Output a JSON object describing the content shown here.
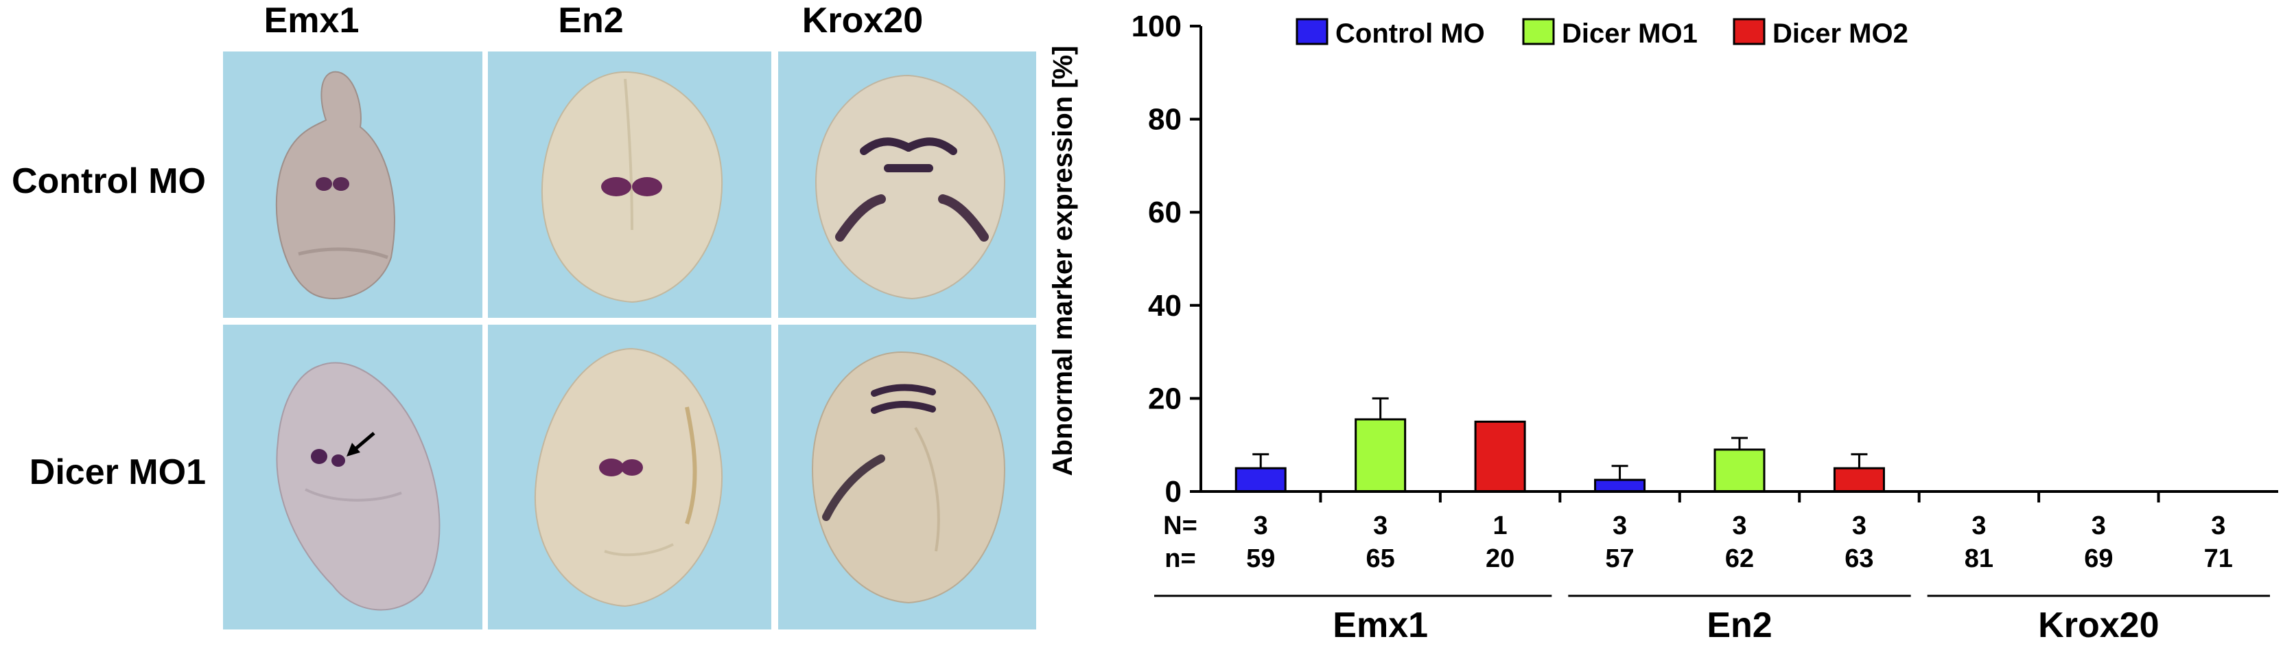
{
  "image_panel": {
    "columns": [
      "Emx1",
      "En2",
      "Krox20"
    ],
    "rows": [
      "Control MO",
      "Dicer MO1"
    ],
    "panel_color": "#a9d6e6"
  },
  "chart_data": {
    "type": "bar",
    "ylabel": "Abnormal marker expression [%]",
    "ylim": [
      0,
      100
    ],
    "yticks": [
      0,
      20,
      40,
      60,
      80,
      100
    ],
    "legend_position": "top",
    "series": [
      {
        "name": "Control MO",
        "color": "#2a1ff0"
      },
      {
        "name": "Dicer MO1",
        "color": "#a3fa3c"
      },
      {
        "name": "Dicer MO2",
        "color": "#e21b1b"
      }
    ],
    "groups": [
      "Emx1",
      "En2",
      "Krox20"
    ],
    "N_label": "N=",
    "n_label": "n=",
    "bars": [
      {
        "group": "Emx1",
        "series": "Control MO",
        "value": 5,
        "error": 3,
        "N": "3",
        "n": "59"
      },
      {
        "group": "Emx1",
        "series": "Dicer MO1",
        "value": 15.5,
        "error": 4.5,
        "N": "3",
        "n": "65"
      },
      {
        "group": "Emx1",
        "series": "Dicer MO2",
        "value": 15,
        "error": 0,
        "N": "1",
        "n": "20"
      },
      {
        "group": "En2",
        "series": "Control MO",
        "value": 2.5,
        "error": 3,
        "N": "3",
        "n": "57"
      },
      {
        "group": "En2",
        "series": "Dicer MO1",
        "value": 9,
        "error": 2.5,
        "N": "3",
        "n": "62"
      },
      {
        "group": "En2",
        "series": "Dicer MO2",
        "value": 5,
        "error": 3,
        "N": "3",
        "n": "63"
      },
      {
        "group": "Krox20",
        "series": "Control MO",
        "value": 0,
        "error": 0,
        "N": "3",
        "n": "81"
      },
      {
        "group": "Krox20",
        "series": "Dicer MO1",
        "value": 0,
        "error": 0,
        "N": "3",
        "n": "69"
      },
      {
        "group": "Krox20",
        "series": "Dicer MO2",
        "value": 0,
        "error": 0,
        "N": "3",
        "n": "71"
      }
    ]
  }
}
